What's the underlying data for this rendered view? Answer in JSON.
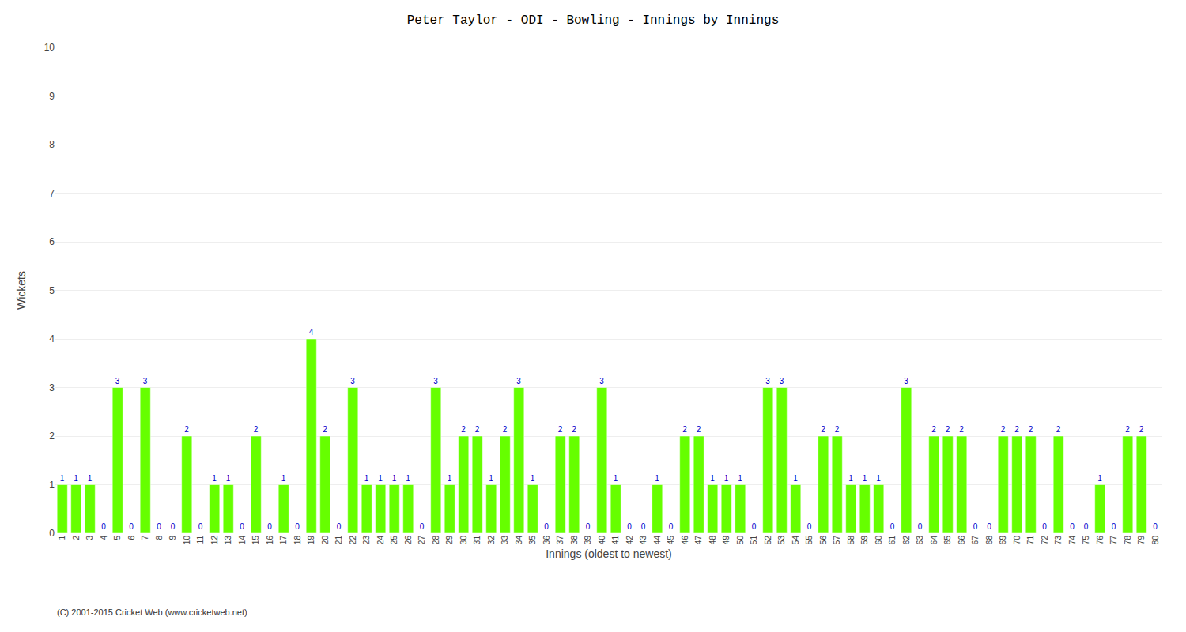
{
  "chart_data": {
    "type": "bar",
    "title": "Peter Taylor - ODI - Bowling - Innings by Innings",
    "x_label": "Innings (oldest to newest)",
    "y_label": "Wickets",
    "annotations": [
      "(C) 2001-2015 Cricket Web (www.cricketweb.net)"
    ],
    "categories": [
      "1",
      "2",
      "3",
      "4",
      "5",
      "6",
      "7",
      "8",
      "9",
      "10",
      "11",
      "12",
      "13",
      "14",
      "15",
      "16",
      "17",
      "18",
      "19",
      "20",
      "21",
      "22",
      "23",
      "24",
      "25",
      "26",
      "27",
      "28",
      "29",
      "30",
      "31",
      "32",
      "33",
      "34",
      "35",
      "36",
      "37",
      "38",
      "39",
      "40",
      "41",
      "42",
      "43",
      "44",
      "45",
      "46",
      "47",
      "48",
      "49",
      "50",
      "51",
      "52",
      "53",
      "54",
      "55",
      "56",
      "57",
      "58",
      "59",
      "60",
      "61",
      "62",
      "63",
      "64",
      "65",
      "66",
      "67",
      "68",
      "69",
      "70",
      "71",
      "72",
      "73",
      "74",
      "75",
      "76",
      "77",
      "78",
      "79",
      "80"
    ],
    "values": [
      1,
      1,
      1,
      0,
      3,
      0,
      3,
      0,
      0,
      2,
      0,
      1,
      1,
      0,
      2,
      0,
      1,
      0,
      4,
      2,
      0,
      3,
      1,
      1,
      1,
      1,
      0,
      3,
      1,
      2,
      2,
      1,
      2,
      3,
      1,
      0,
      2,
      2,
      0,
      3,
      1,
      0,
      0,
      1,
      0,
      2,
      2,
      1,
      1,
      1,
      0,
      3,
      3,
      1,
      0,
      2,
      2,
      1,
      1,
      1,
      0,
      3,
      0,
      2,
      2,
      2,
      0,
      0,
      2,
      2,
      2,
      0,
      2,
      0,
      0,
      1,
      0,
      2,
      2,
      0
    ],
    "color": "#66ff00",
    "ylim": [
      0,
      10
    ],
    "yticks": [
      0,
      1,
      2,
      3,
      4,
      5,
      6,
      7,
      8,
      9,
      10
    ],
    "grid": true,
    "data_labels": true
  }
}
